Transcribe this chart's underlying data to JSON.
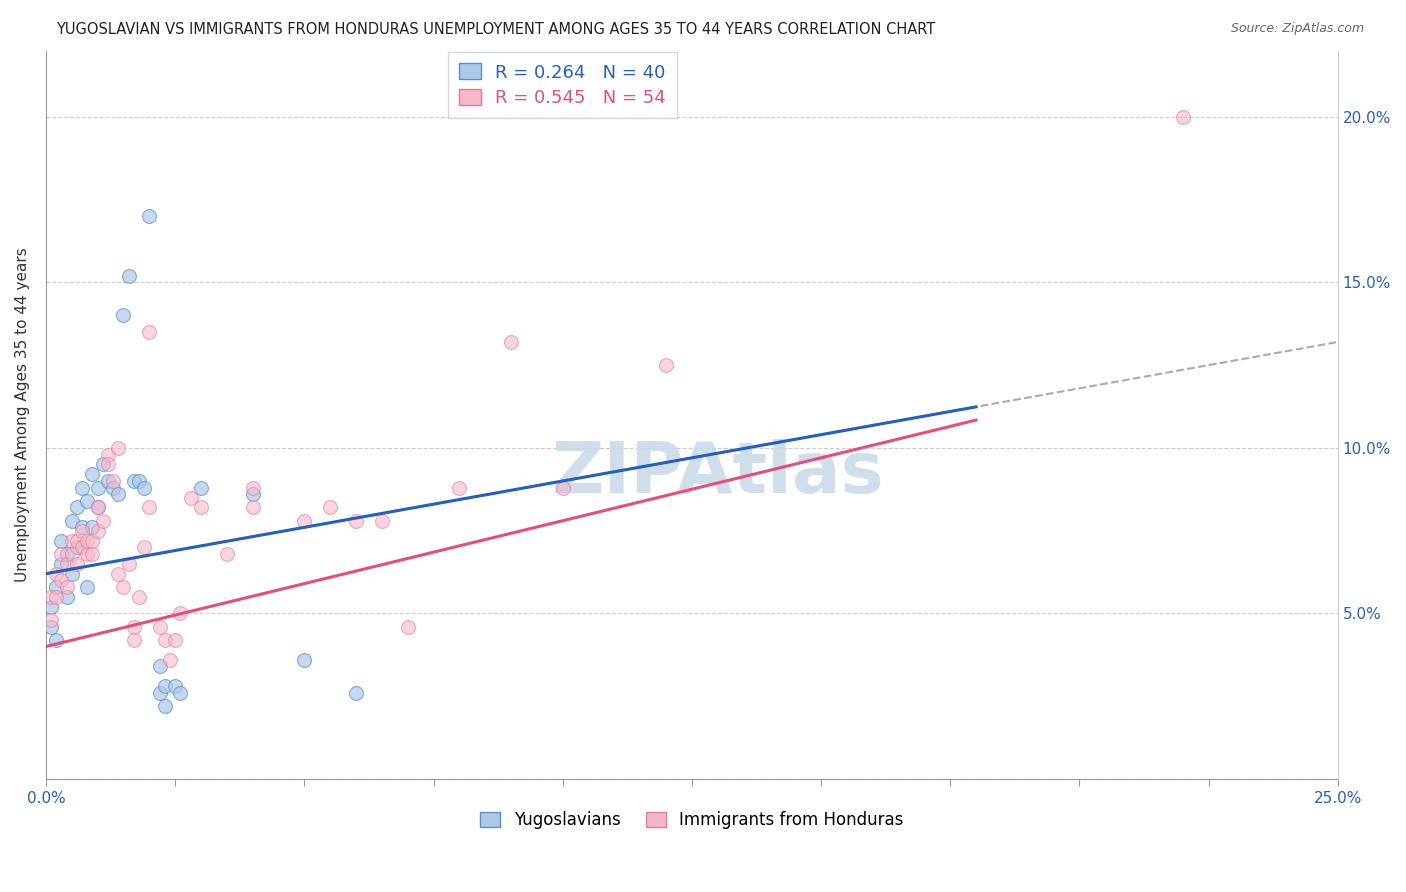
{
  "title": "YUGOSLAVIAN VS IMMIGRANTS FROM HONDURAS UNEMPLOYMENT AMONG AGES 35 TO 44 YEARS CORRELATION CHART",
  "source": "Source: ZipAtlas.com",
  "ylabel": "Unemployment Among Ages 35 to 44 years",
  "xlim": [
    0.0,
    0.25
  ],
  "ylim": [
    0.0,
    0.22
  ],
  "x_ticks": [
    0.0,
    0.025,
    0.05,
    0.075,
    0.1,
    0.125,
    0.15,
    0.175,
    0.2,
    0.225,
    0.25
  ],
  "y_ticks": [
    0.0,
    0.05,
    0.1,
    0.15,
    0.2
  ],
  "y_tick_labels_right": [
    "",
    "5.0%",
    "10.0%",
    "15.0%",
    "20.0%"
  ],
  "x_tick_labels_show": {
    "0.0": "0.0%",
    "0.25": "25.0%"
  },
  "legend_labels_bottom": [
    "Yugoslavians",
    "Immigrants from Honduras"
  ],
  "blue_scatter_color": "#aec8e8",
  "pink_scatter_color": "#f4b8c8",
  "blue_edge_color": "#5590c8",
  "pink_edge_color": "#e878a0",
  "blue_line_color": "#2860b8",
  "pink_line_color": "#e0507a",
  "dashed_line_color": "#aaaaaa",
  "watermark_text": "ZIPAtlas",
  "watermark_color": "#c8d8e8",
  "blue_R": 0.264,
  "blue_N": 40,
  "pink_R": 0.545,
  "pink_N": 54,
  "grid_color": "#cccccc",
  "yugoslavian_points": [
    [
      0.001,
      0.046
    ],
    [
      0.001,
      0.052
    ],
    [
      0.002,
      0.058
    ],
    [
      0.002,
      0.042
    ],
    [
      0.003,
      0.065
    ],
    [
      0.003,
      0.072
    ],
    [
      0.004,
      0.068
    ],
    [
      0.004,
      0.055
    ],
    [
      0.005,
      0.078
    ],
    [
      0.005,
      0.062
    ],
    [
      0.006,
      0.082
    ],
    [
      0.006,
      0.07
    ],
    [
      0.007,
      0.088
    ],
    [
      0.007,
      0.076
    ],
    [
      0.008,
      0.058
    ],
    [
      0.008,
      0.084
    ],
    [
      0.009,
      0.076
    ],
    [
      0.009,
      0.092
    ],
    [
      0.01,
      0.088
    ],
    [
      0.01,
      0.082
    ],
    [
      0.011,
      0.095
    ],
    [
      0.012,
      0.09
    ],
    [
      0.013,
      0.088
    ],
    [
      0.014,
      0.086
    ],
    [
      0.015,
      0.14
    ],
    [
      0.016,
      0.152
    ],
    [
      0.017,
      0.09
    ],
    [
      0.018,
      0.09
    ],
    [
      0.019,
      0.088
    ],
    [
      0.02,
      0.17
    ],
    [
      0.022,
      0.034
    ],
    [
      0.022,
      0.026
    ],
    [
      0.023,
      0.028
    ],
    [
      0.023,
      0.022
    ],
    [
      0.025,
      0.028
    ],
    [
      0.026,
      0.026
    ],
    [
      0.03,
      0.088
    ],
    [
      0.04,
      0.086
    ],
    [
      0.05,
      0.036
    ],
    [
      0.06,
      0.026
    ]
  ],
  "honduras_points": [
    [
      0.001,
      0.048
    ],
    [
      0.001,
      0.055
    ],
    [
      0.002,
      0.055
    ],
    [
      0.002,
      0.062
    ],
    [
      0.003,
      0.06
    ],
    [
      0.003,
      0.068
    ],
    [
      0.004,
      0.065
    ],
    [
      0.004,
      0.058
    ],
    [
      0.005,
      0.072
    ],
    [
      0.005,
      0.068
    ],
    [
      0.006,
      0.065
    ],
    [
      0.006,
      0.072
    ],
    [
      0.007,
      0.07
    ],
    [
      0.007,
      0.075
    ],
    [
      0.008,
      0.068
    ],
    [
      0.008,
      0.072
    ],
    [
      0.009,
      0.068
    ],
    [
      0.009,
      0.072
    ],
    [
      0.01,
      0.075
    ],
    [
      0.01,
      0.082
    ],
    [
      0.011,
      0.078
    ],
    [
      0.012,
      0.098
    ],
    [
      0.012,
      0.095
    ],
    [
      0.013,
      0.09
    ],
    [
      0.014,
      0.1
    ],
    [
      0.014,
      0.062
    ],
    [
      0.015,
      0.058
    ],
    [
      0.016,
      0.065
    ],
    [
      0.017,
      0.046
    ],
    [
      0.017,
      0.042
    ],
    [
      0.018,
      0.055
    ],
    [
      0.019,
      0.07
    ],
    [
      0.02,
      0.082
    ],
    [
      0.02,
      0.135
    ],
    [
      0.022,
      0.046
    ],
    [
      0.023,
      0.042
    ],
    [
      0.024,
      0.036
    ],
    [
      0.025,
      0.042
    ],
    [
      0.026,
      0.05
    ],
    [
      0.028,
      0.085
    ],
    [
      0.03,
      0.082
    ],
    [
      0.035,
      0.068
    ],
    [
      0.04,
      0.082
    ],
    [
      0.04,
      0.088
    ],
    [
      0.05,
      0.078
    ],
    [
      0.055,
      0.082
    ],
    [
      0.06,
      0.078
    ],
    [
      0.065,
      0.078
    ],
    [
      0.07,
      0.046
    ],
    [
      0.08,
      0.088
    ],
    [
      0.09,
      0.132
    ],
    [
      0.1,
      0.088
    ],
    [
      0.12,
      0.125
    ],
    [
      0.22,
      0.2
    ]
  ],
  "blue_line_x": [
    0.0,
    0.18
  ],
  "pink_line_x": [
    0.0,
    0.18
  ],
  "dashed_line_x": [
    0.0,
    0.25
  ],
  "blue_intercept": 0.062,
  "blue_slope": 0.28,
  "pink_intercept": 0.04,
  "pink_slope": 0.38,
  "dashed_intercept": 0.062,
  "dashed_slope": 0.28
}
